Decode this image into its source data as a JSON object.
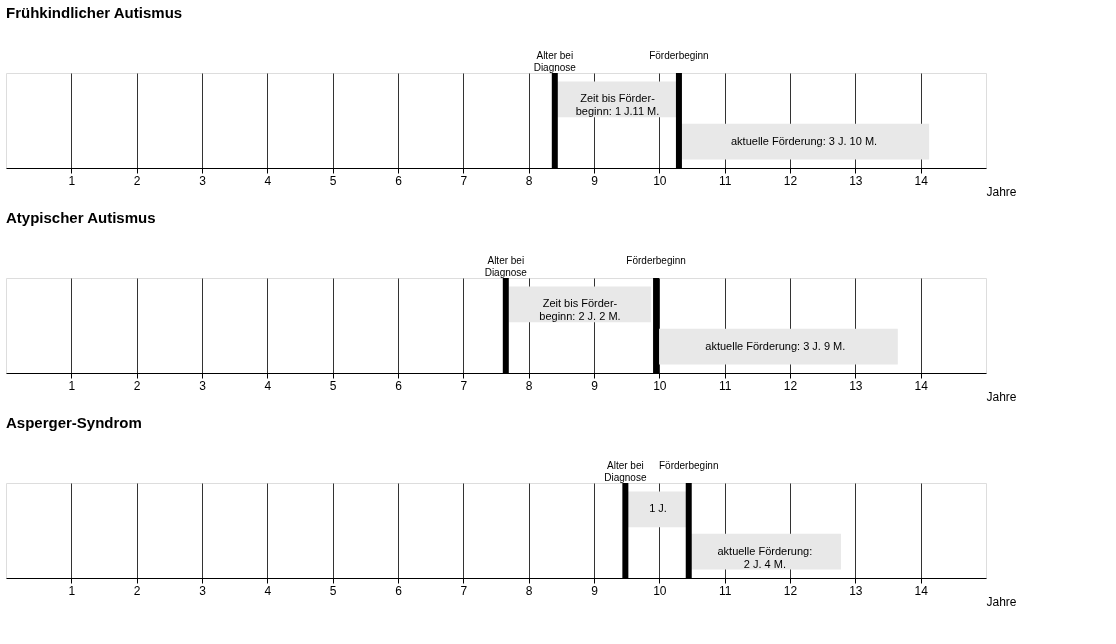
{
  "chart_data": [
    {
      "type": "bar",
      "title": "Frühkindlicher Autismus",
      "orientation": "horizontal",
      "categories": [
        null,
        null
      ],
      "values": [
        1.92,
        3.83
      ],
      "base": [
        8.4,
        10.3
      ],
      "color": "#e8e8e8",
      "value_labels": [
        "Zeit bis Förder-\nbeginn: 1 J.11 M.",
        "aktuelle Förderung: 3 J. 10 M."
      ],
      "ref_lines": [
        {
          "axis": "x",
          "value": 8.4,
          "label": "Alter bei\nDiagnose",
          "color": "#000000"
        },
        {
          "axis": "x",
          "value": 10.3,
          "label": "Förderbeginn",
          "color": "#000000"
        }
      ],
      "xlim": [
        0,
        15
      ],
      "xticks": [
        1,
        2,
        3,
        4,
        5,
        6,
        7,
        8,
        9,
        10,
        11,
        12,
        13,
        14
      ],
      "xlabel": "Jahre",
      "grid": "x",
      "tick_labels": "x"
    },
    {
      "type": "bar",
      "title": "Atypischer Autismus",
      "orientation": "horizontal",
      "categories": [
        null,
        null
      ],
      "values": [
        2.17,
        3.75
      ],
      "base": [
        7.7,
        9.9
      ],
      "color": "#e8e8e8",
      "value_labels": [
        "Zeit bis Förder-\nbeginn: 2 J. 2 M.",
        "aktuelle Förderung: 3 J. 9 M."
      ],
      "ref_lines": [
        {
          "axis": "x",
          "value": 7.65,
          "label": "Alter bei\nDiagnose",
          "color": "#000000"
        },
        {
          "axis": "x",
          "value": 9.95,
          "label": "Förderbeginn",
          "color": "#000000"
        }
      ],
      "xlim": [
        0,
        15
      ],
      "xticks": [
        1,
        2,
        3,
        4,
        5,
        6,
        7,
        8,
        9,
        10,
        11,
        12,
        13,
        14
      ],
      "xlabel": "Jahre",
      "grid": "x",
      "tick_labels": "x"
    },
    {
      "type": "bar",
      "title": "Asperger-Syndrom",
      "orientation": "horizontal",
      "categories": [
        null,
        null
      ],
      "values": [
        1,
        2.33
      ],
      "base": [
        9.48,
        10.45
      ],
      "color": "#e8e8e8",
      "value_labels": [
        "1 J.",
        "aktuelle Förderung:\n2 J. 4 M."
      ],
      "ref_lines": [
        {
          "axis": "x",
          "value": 9.48,
          "label": "Alter bei\nDiagnose",
          "color": "#000000"
        },
        {
          "axis": "x",
          "value": 10.45,
          "label": "Förderbeginn",
          "color": "#000000"
        }
      ],
      "xlim": [
        0,
        15
      ],
      "xticks": [
        1,
        2,
        3,
        4,
        5,
        6,
        7,
        8,
        9,
        10,
        11,
        12,
        13,
        14
      ],
      "xlabel": "Jahre",
      "grid": "x",
      "tick_labels": "x"
    }
  ]
}
